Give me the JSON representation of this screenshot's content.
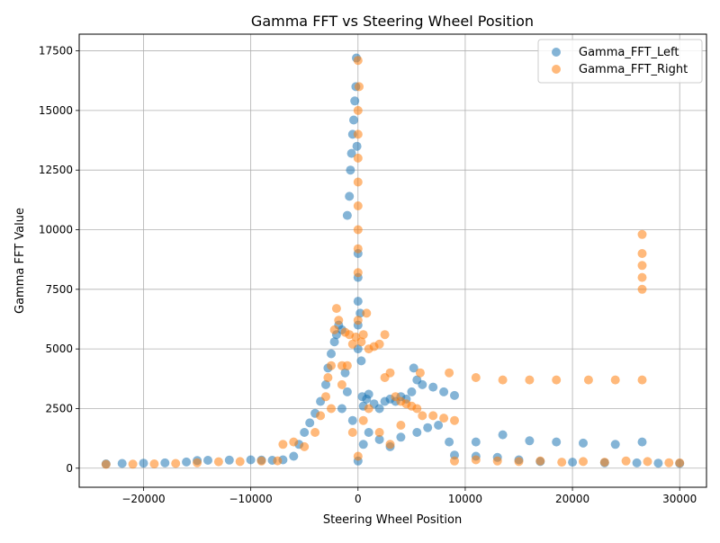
{
  "chart_data": {
    "type": "scatter",
    "title": "Gamma FFT vs Steering Wheel Position",
    "xlabel": "Steering Wheel Position",
    "ylabel": "Gamma FFT Value",
    "xlim": [
      -26000,
      32500
    ],
    "ylim": [
      -800,
      18200
    ],
    "x_ticks": [
      -20000,
      -10000,
      0,
      10000,
      20000,
      30000
    ],
    "y_ticks": [
      0,
      2500,
      5000,
      7500,
      10000,
      12500,
      15000,
      17500
    ],
    "x_tick_labels": [
      "−20000",
      "−10000",
      "0",
      "10000",
      "20000",
      "30000"
    ],
    "y_tick_labels": [
      "0",
      "2500",
      "5000",
      "7500",
      "10000",
      "12500",
      "15000",
      "17500"
    ],
    "grid": true,
    "legend_position": "upper-right",
    "series": [
      {
        "name": "Gamma_FFT_Left",
        "color": "#1f77b4",
        "points": [
          [
            -23500,
            180
          ],
          [
            -22000,
            200
          ],
          [
            -20000,
            210
          ],
          [
            -18000,
            220
          ],
          [
            -16000,
            260
          ],
          [
            -15000,
            320
          ],
          [
            -14000,
            330
          ],
          [
            -12000,
            340
          ],
          [
            -10000,
            350
          ],
          [
            -9000,
            340
          ],
          [
            -8000,
            330
          ],
          [
            -7000,
            350
          ],
          [
            -6000,
            500
          ],
          [
            -5500,
            1000
          ],
          [
            -5000,
            1500
          ],
          [
            -4500,
            1900
          ],
          [
            -4000,
            2300
          ],
          [
            -3500,
            2800
          ],
          [
            -3000,
            3500
          ],
          [
            -2800,
            4200
          ],
          [
            -2500,
            4800
          ],
          [
            -2200,
            5300
          ],
          [
            -2000,
            5600
          ],
          [
            -1800,
            6000
          ],
          [
            -1500,
            5800
          ],
          [
            -1200,
            4000
          ],
          [
            -1000,
            10600
          ],
          [
            -800,
            11400
          ],
          [
            -700,
            12500
          ],
          [
            -600,
            13200
          ],
          [
            -500,
            14000
          ],
          [
            -400,
            14600
          ],
          [
            -300,
            15400
          ],
          [
            -200,
            16000
          ],
          [
            -150,
            17200
          ],
          [
            -100,
            13500
          ],
          [
            0,
            8000
          ],
          [
            0,
            9000
          ],
          [
            0,
            7000
          ],
          [
            0,
            6000
          ],
          [
            0,
            5000
          ],
          [
            200,
            6500
          ],
          [
            300,
            4500
          ],
          [
            400,
            3000
          ],
          [
            500,
            2600
          ],
          [
            800,
            2900
          ],
          [
            1000,
            3100
          ],
          [
            1500,
            2700
          ],
          [
            2000,
            2500
          ],
          [
            2500,
            2800
          ],
          [
            3000,
            2900
          ],
          [
            3500,
            2800
          ],
          [
            4000,
            3000
          ],
          [
            4500,
            2900
          ],
          [
            5000,
            3200
          ],
          [
            5200,
            4200
          ],
          [
            5500,
            3700
          ],
          [
            6000,
            3500
          ],
          [
            7000,
            3400
          ],
          [
            8000,
            3200
          ],
          [
            9000,
            3050
          ],
          [
            5500,
            1500
          ],
          [
            6500,
            1700
          ],
          [
            7500,
            1800
          ],
          [
            8500,
            1100
          ],
          [
            11000,
            1100
          ],
          [
            13500,
            1400
          ],
          [
            16000,
            1150
          ],
          [
            18500,
            1100
          ],
          [
            21000,
            1050
          ],
          [
            24000,
            1000
          ],
          [
            26500,
            1100
          ],
          [
            9000,
            550
          ],
          [
            11000,
            500
          ],
          [
            13000,
            450
          ],
          [
            15000,
            350
          ],
          [
            17000,
            280
          ],
          [
            20000,
            250
          ],
          [
            23000,
            230
          ],
          [
            26000,
            220
          ],
          [
            28000,
            210
          ],
          [
            30000,
            200
          ],
          [
            1000,
            1500
          ],
          [
            2000,
            1200
          ],
          [
            3000,
            900
          ],
          [
            4000,
            1300
          ],
          [
            -1500,
            2500
          ],
          [
            -1000,
            3200
          ],
          [
            -500,
            2000
          ],
          [
            500,
            1000
          ],
          [
            0,
            300
          ]
        ]
      },
      {
        "name": "Gamma_FFT_Right",
        "color": "#ff7f0e",
        "points": [
          [
            -23500,
            160
          ],
          [
            -21000,
            170
          ],
          [
            -19000,
            180
          ],
          [
            -17000,
            200
          ],
          [
            -15000,
            230
          ],
          [
            -13000,
            270
          ],
          [
            -11000,
            280
          ],
          [
            -9000,
            300
          ],
          [
            -7500,
            310
          ],
          [
            -7000,
            1000
          ],
          [
            -6000,
            1100
          ],
          [
            -5000,
            900
          ],
          [
            -4000,
            1500
          ],
          [
            -3500,
            2200
          ],
          [
            -3000,
            3000
          ],
          [
            -2800,
            3800
          ],
          [
            -2500,
            4300
          ],
          [
            -2200,
            5800
          ],
          [
            -2000,
            6700
          ],
          [
            -1800,
            6200
          ],
          [
            -1500,
            4300
          ],
          [
            -1200,
            5700
          ],
          [
            -1000,
            4300
          ],
          [
            -800,
            5600
          ],
          [
            -500,
            5200
          ],
          [
            -200,
            5500
          ],
          [
            0,
            6200
          ],
          [
            0,
            8200
          ],
          [
            0,
            9200
          ],
          [
            0,
            10000
          ],
          [
            0,
            11000
          ],
          [
            0,
            12000
          ],
          [
            0,
            13000
          ],
          [
            0,
            14000
          ],
          [
            0,
            15000
          ],
          [
            0,
            17100
          ],
          [
            100,
            16000
          ],
          [
            300,
            5300
          ],
          [
            500,
            5600
          ],
          [
            800,
            6500
          ],
          [
            1000,
            5000
          ],
          [
            1500,
            5100
          ],
          [
            2000,
            5200
          ],
          [
            2500,
            5600
          ],
          [
            2500,
            3800
          ],
          [
            3000,
            4000
          ],
          [
            3500,
            3000
          ],
          [
            4000,
            2800
          ],
          [
            4500,
            2700
          ],
          [
            5000,
            2600
          ],
          [
            5500,
            2500
          ],
          [
            5800,
            4000
          ],
          [
            6000,
            2200
          ],
          [
            7000,
            2200
          ],
          [
            8000,
            2100
          ],
          [
            8500,
            4000
          ],
          [
            9000,
            2000
          ],
          [
            11000,
            3800
          ],
          [
            13500,
            3700
          ],
          [
            16000,
            3700
          ],
          [
            18500,
            3700
          ],
          [
            21500,
            3700
          ],
          [
            24000,
            3700
          ],
          [
            26500,
            3700
          ],
          [
            26500,
            7500
          ],
          [
            26500,
            8000
          ],
          [
            26500,
            8500
          ],
          [
            26500,
            9000
          ],
          [
            26500,
            9800
          ],
          [
            9000,
            300
          ],
          [
            11000,
            350
          ],
          [
            13000,
            300
          ],
          [
            15000,
            280
          ],
          [
            17000,
            300
          ],
          [
            19000,
            250
          ],
          [
            21000,
            280
          ],
          [
            23000,
            250
          ],
          [
            25000,
            300
          ],
          [
            27000,
            280
          ],
          [
            29000,
            230
          ],
          [
            30000,
            220
          ],
          [
            1000,
            2500
          ],
          [
            2000,
            1500
          ],
          [
            3000,
            1000
          ],
          [
            4000,
            1800
          ],
          [
            -2500,
            2500
          ],
          [
            -1500,
            3500
          ],
          [
            -500,
            1500
          ],
          [
            500,
            2000
          ],
          [
            0,
            500
          ]
        ]
      }
    ]
  }
}
